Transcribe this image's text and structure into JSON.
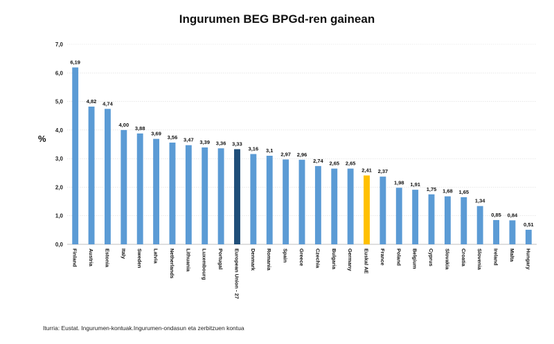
{
  "title": "Ingurumen BEG BPGd-ren gainean",
  "source": "Iturria: Eustat. Ingurumen-kontuak.Ingurumen-ondasun eta zerbitzuen kontua",
  "colors": {
    "default": "#5b9bd5",
    "eu": "#1f4e79",
    "euskal": "#ffc000",
    "grid": "#d9d9d9",
    "axis": "#bfbfbf"
  },
  "chart_data": {
    "type": "bar",
    "title": "Ingurumen BEG BPGd-ren gainean",
    "xlabel": "",
    "ylabel": "%",
    "ylim": [
      0,
      7
    ],
    "yticks": [
      "0,0",
      "1,0",
      "2,0",
      "3,0",
      "4,0",
      "5,0",
      "6,0",
      "7,0"
    ],
    "grid": true,
    "categories": [
      "Finland",
      "Austria",
      "Estonia",
      "Italy",
      "Sweden",
      "Latvia",
      "Netherlands",
      "Lithuania",
      "Luxembourg",
      "Portugal",
      "European Union - 27",
      "Denmark",
      "Romania",
      "Spain",
      "Greece",
      "Czechia",
      "Bulgaria",
      "Germany",
      "Euskal AE",
      "France",
      "Poland",
      "Belgium",
      "Cyprus",
      "Slovakia",
      "Croatia",
      "Slovenia",
      "Ireland",
      "Malta",
      "Hungary"
    ],
    "values": [
      6.19,
      4.82,
      4.74,
      4.0,
      3.88,
      3.69,
      3.56,
      3.47,
      3.39,
      3.36,
      3.33,
      3.16,
      3.1,
      2.97,
      2.96,
      2.74,
      2.65,
      2.65,
      2.41,
      2.37,
      1.98,
      1.91,
      1.75,
      1.68,
      1.65,
      1.34,
      0.85,
      0.84,
      0.51
    ],
    "value_labels": [
      "6,19",
      "4,82",
      "4,74",
      "4,00",
      "3,88",
      "3,69",
      "3,56",
      "3,47",
      "3,39",
      "3,36",
      "3,33",
      "3,16",
      "3,1",
      "2,97",
      "2,96",
      "2,74",
      "2,65",
      "2,65",
      "2,41",
      "2,37",
      "1,98",
      "1,91",
      "1,75",
      "1,68",
      "1,65",
      "1,34",
      "0,85",
      "0,84",
      "0,51"
    ],
    "highlight": {
      "European Union - 27": "eu",
      "Euskal AE": "euskal"
    }
  }
}
